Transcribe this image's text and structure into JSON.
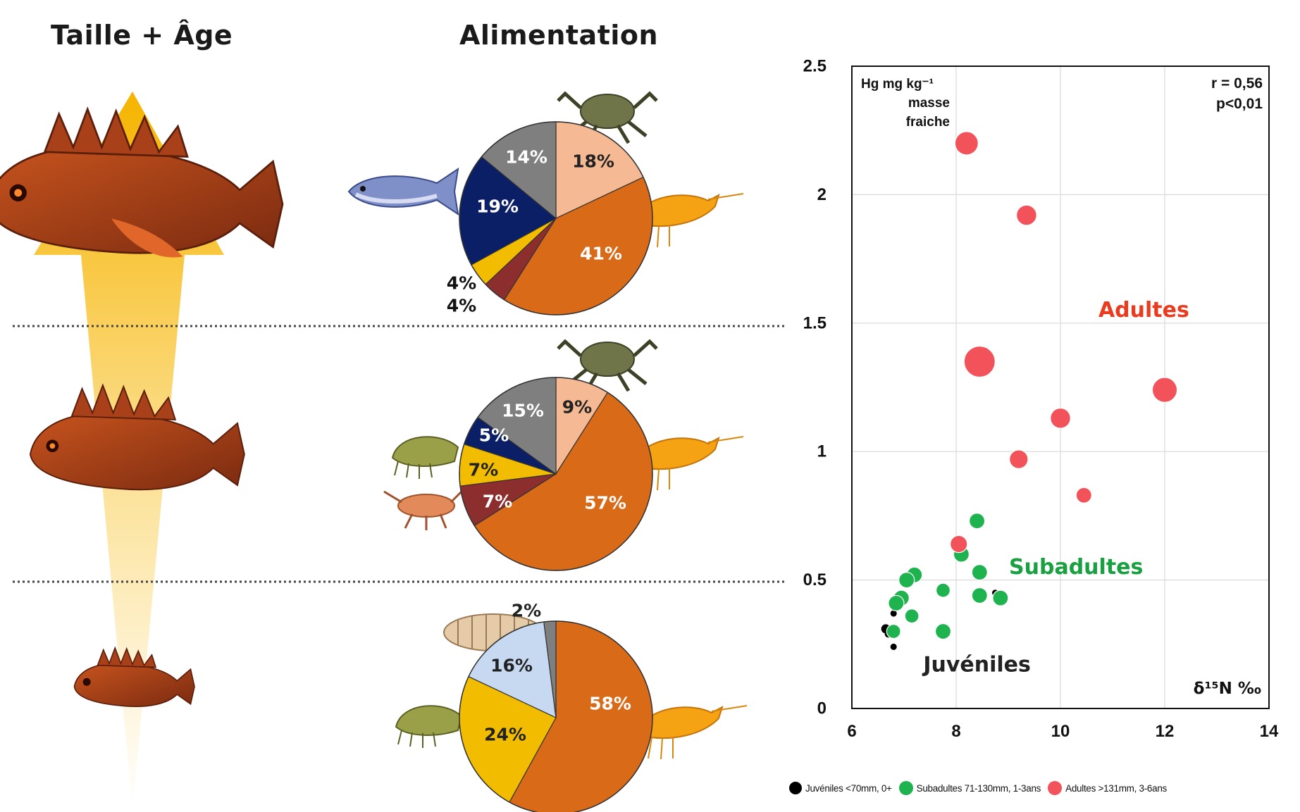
{
  "headings": {
    "left": "Taille + Âge",
    "middle": "Alimentation"
  },
  "pies": [
    {
      "slices": [
        {
          "label": "18%",
          "value": 18,
          "color": "#f5b993"
        },
        {
          "label": "41%",
          "value": 41,
          "color": "#d96a18"
        },
        {
          "label": "4%",
          "value": 4,
          "color": "#8c2e2e"
        },
        {
          "label": "4%",
          "value": 4,
          "color": "#f2bd00"
        },
        {
          "label": "19%",
          "value": 19,
          "color": "#0b1f66"
        },
        {
          "label": "14%",
          "value": 14,
          "color": "#7f7f7f"
        }
      ]
    },
    {
      "slices": [
        {
          "label": "9%",
          "value": 9,
          "color": "#f5b993"
        },
        {
          "label": "57%",
          "value": 57,
          "color": "#d96a18"
        },
        {
          "label": "7%",
          "value": 7,
          "color": "#8c2e2e"
        },
        {
          "label": "7%",
          "value": 7,
          "color": "#f2bd00"
        },
        {
          "label": "5%",
          "value": 5,
          "color": "#0b1f66"
        },
        {
          "label": "15%",
          "value": 15,
          "color": "#7f7f7f"
        }
      ]
    },
    {
      "slices": [
        {
          "label": "58%",
          "value": 58,
          "color": "#d96a18"
        },
        {
          "label": "24%",
          "value": 24,
          "color": "#f2bd00"
        },
        {
          "label": "16%",
          "value": 16,
          "color": "#c6d9f1"
        },
        {
          "label": "2%",
          "value": 2,
          "color": "#7f7f7f"
        }
      ]
    }
  ],
  "chart_data": [
    {
      "type": "pie",
      "slices": [
        {
          "label": "18%",
          "value": 18
        },
        {
          "label": "41%",
          "value": 41
        },
        {
          "label": "4%",
          "value": 4
        },
        {
          "label": "4%",
          "value": 4
        },
        {
          "label": "19%",
          "value": 19
        },
        {
          "label": "14%",
          "value": 14
        }
      ]
    },
    {
      "type": "pie",
      "slices": [
        {
          "label": "9%",
          "value": 9
        },
        {
          "label": "57%",
          "value": 57
        },
        {
          "label": "7%",
          "value": 7
        },
        {
          "label": "7%",
          "value": 7
        },
        {
          "label": "5%",
          "value": 5
        },
        {
          "label": "15%",
          "value": 15
        }
      ]
    },
    {
      "type": "pie",
      "slices": [
        {
          "label": "58%",
          "value": 58
        },
        {
          "label": "24%",
          "value": 24
        },
        {
          "label": "16%",
          "value": 16
        },
        {
          "label": "2%",
          "value": 2
        }
      ]
    },
    {
      "type": "scatter",
      "ylabel_lines": [
        "Hg mg kg⁻¹",
        "masse",
        "fraiche"
      ],
      "xlabel": "δ¹⁵N ‰",
      "xlim": [
        6,
        14
      ],
      "ylim": [
        0,
        2.5
      ],
      "xticks": [
        "6",
        "8",
        "10",
        "12",
        "14"
      ],
      "yticks": [
        "0",
        "0.5",
        "1",
        "1.5",
        "2",
        "2.5"
      ],
      "grid": true,
      "stats": [
        "r = 0,56",
        "p<0,01"
      ],
      "annotations": [
        {
          "text": "Adultes",
          "x": 11.6,
          "y": 1.55,
          "color": "#ea3b1f"
        },
        {
          "text": "Subadultes",
          "x": 10.3,
          "y": 0.55,
          "color": "#19a040"
        },
        {
          "text": "Juvéniles",
          "x": 8.4,
          "y": 0.17,
          "color": "#222222"
        }
      ],
      "legend": [
        {
          "name": "Juvéniles <70mm, 0+",
          "color": "#000000"
        },
        {
          "name": "Subadultes 71-130mm, 1-3ans",
          "color": "#1fb350"
        },
        {
          "name": "Adultes >131mm, 3-6ans",
          "color": "#f2525a"
        }
      ],
      "series": [
        {
          "name": "Juvéniles <70mm, 0+",
          "color": "#000000",
          "points": [
            {
              "x": 6.8,
              "y": 0.37,
              "s": 0.7
            },
            {
              "x": 6.65,
              "y": 0.31,
              "s": 1.0
            },
            {
              "x": 6.7,
              "y": 0.29,
              "s": 0.8
            },
            {
              "x": 6.8,
              "y": 0.24,
              "s": 0.7
            },
            {
              "x": 8.75,
              "y": 0.45,
              "s": 0.7
            }
          ]
        },
        {
          "name": "Subadultes 71-130mm, 1-3ans",
          "color": "#1fb350",
          "points": [
            {
              "x": 8.4,
              "y": 0.73,
              "s": 1.0
            },
            {
              "x": 8.1,
              "y": 0.6,
              "s": 1.0
            },
            {
              "x": 8.45,
              "y": 0.53,
              "s": 1.0
            },
            {
              "x": 7.2,
              "y": 0.52,
              "s": 1.0
            },
            {
              "x": 7.05,
              "y": 0.5,
              "s": 1.0
            },
            {
              "x": 7.75,
              "y": 0.46,
              "s": 0.9
            },
            {
              "x": 6.95,
              "y": 0.43,
              "s": 1.0
            },
            {
              "x": 6.85,
              "y": 0.41,
              "s": 1.0
            },
            {
              "x": 8.45,
              "y": 0.44,
              "s": 1.0
            },
            {
              "x": 8.85,
              "y": 0.43,
              "s": 1.0
            },
            {
              "x": 7.15,
              "y": 0.36,
              "s": 0.9
            },
            {
              "x": 6.8,
              "y": 0.3,
              "s": 0.9
            },
            {
              "x": 7.75,
              "y": 0.3,
              "s": 1.0
            }
          ]
        },
        {
          "name": "Adultes >131mm, 3-6ans",
          "color": "#f2525a",
          "points": [
            {
              "x": 8.2,
              "y": 2.2,
              "s": 1.5
            },
            {
              "x": 9.35,
              "y": 1.92,
              "s": 1.3
            },
            {
              "x": 8.45,
              "y": 1.35,
              "s": 2.0
            },
            {
              "x": 12.0,
              "y": 1.24,
              "s": 1.6
            },
            {
              "x": 10.0,
              "y": 1.13,
              "s": 1.3
            },
            {
              "x": 9.2,
              "y": 0.97,
              "s": 1.2
            },
            {
              "x": 10.45,
              "y": 0.83,
              "s": 1.0
            },
            {
              "x": 8.05,
              "y": 0.64,
              "s": 1.1
            }
          ]
        }
      ]
    }
  ]
}
